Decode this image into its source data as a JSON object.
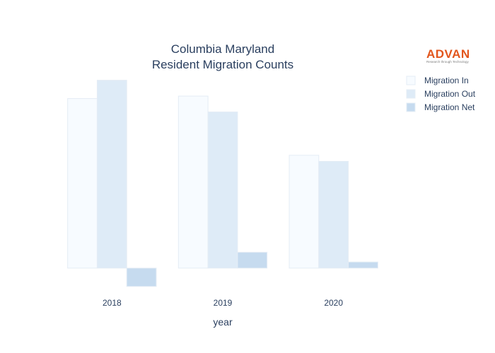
{
  "chart_data": {
    "type": "bar",
    "title_lines": [
      "Columbia Maryland",
      "Resident Migration Counts"
    ],
    "xlabel": "year",
    "ylabel": "",
    "categories": [
      "2018",
      "2019",
      "2020"
    ],
    "series": [
      {
        "name": "Migration In",
        "color": "#f7fbff",
        "values": [
          2780,
          2820,
          1850
        ]
      },
      {
        "name": "Migration Out",
        "color": "#deebf7",
        "values": [
          3080,
          2560,
          1750
        ]
      },
      {
        "name": "Migration Net",
        "color": "#c6dbef",
        "values": [
          -300,
          260,
          100
        ]
      }
    ],
    "ylim": [
      -350,
      3180
    ],
    "grid": false,
    "legend_position": "top-right"
  },
  "logo": {
    "text": "ADVAN",
    "tagline": "Research through Technology"
  }
}
